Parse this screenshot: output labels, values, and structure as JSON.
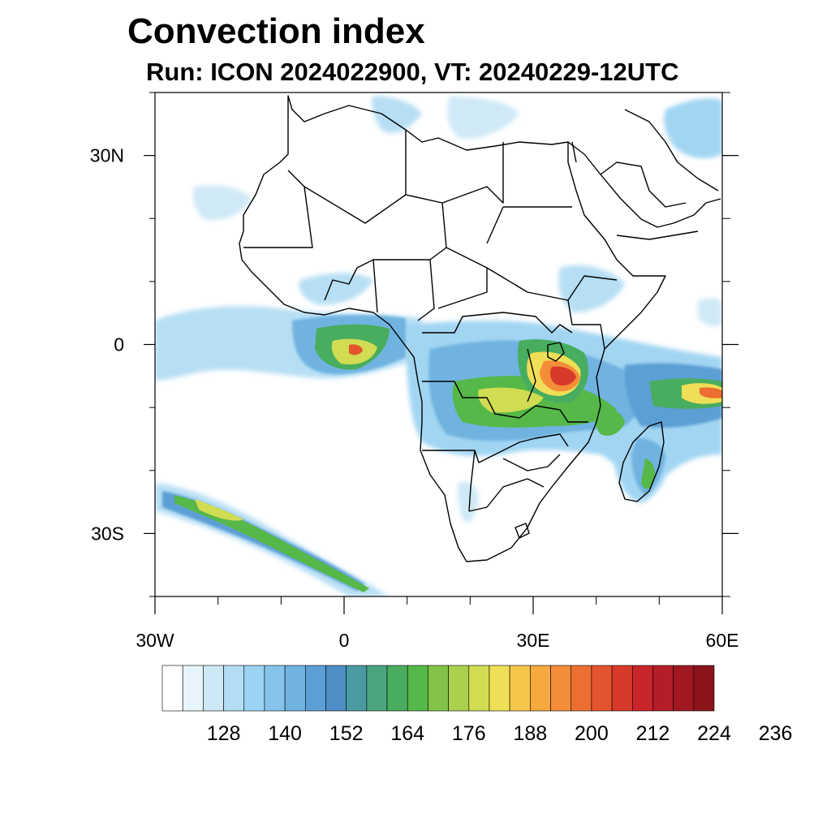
{
  "title": "Convection index",
  "subtitle": "Run: ICON 2024022900,  VT: 20240229-12UTC",
  "map": {
    "lon_range": [
      -30,
      60
    ],
    "lat_range": [
      -40,
      40
    ],
    "lat_ticks": [
      {
        "value": 30,
        "label": "30N"
      },
      {
        "value": 0,
        "label": "0"
      },
      {
        "value": -30,
        "label": "30S"
      }
    ],
    "lon_ticks": [
      {
        "value": -30,
        "label": "30W"
      },
      {
        "value": 0,
        "label": "0"
      },
      {
        "value": 30,
        "label": "30E"
      },
      {
        "value": 60,
        "label": "60E"
      }
    ],
    "minor_lat_ticks": [
      40,
      20,
      10,
      -10,
      -20,
      -40
    ],
    "minor_lon_ticks": [
      -20,
      -10,
      10,
      20,
      40,
      50
    ]
  },
  "colorbar": {
    "colors": [
      "#ffffff",
      "#e8f4fb",
      "#cde8f6",
      "#b3ddf4",
      "#9cd3f2",
      "#86c3ea",
      "#70b3e0",
      "#5b9fd4",
      "#4d8fc6",
      "#4a9aa3",
      "#4aa47e",
      "#48ad5e",
      "#55b848",
      "#84c349",
      "#abd04e",
      "#d1dc52",
      "#eedf56",
      "#f6c64a",
      "#f6a93e",
      "#f38d38",
      "#ec6f31",
      "#e3532d",
      "#d73a2b",
      "#c8262b",
      "#b41d27",
      "#a01820",
      "#8b131a"
    ],
    "labels": [
      "128",
      "140",
      "152",
      "164",
      "176",
      "188",
      "200",
      "212",
      "224",
      "236"
    ]
  }
}
